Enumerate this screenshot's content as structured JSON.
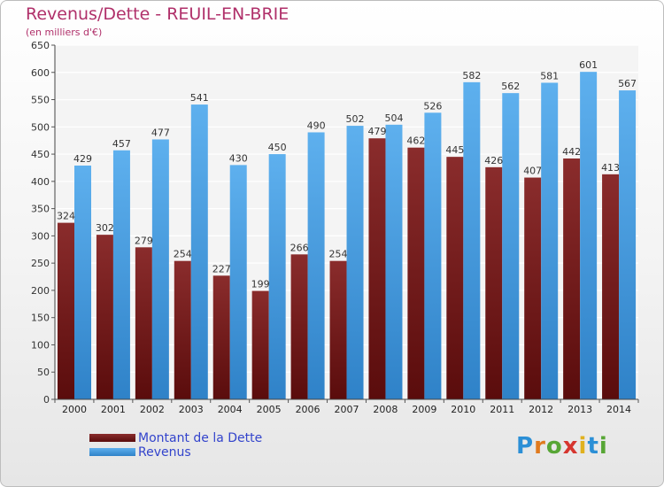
{
  "header": {
    "title": "Revenus/Dette - REUIL-EN-BRIE",
    "subtitle": "(en milliers d'€)"
  },
  "brand": {
    "text": "Proxiti"
  },
  "colors": {
    "dette": "#7a2020",
    "revenus": "#4a9fe0",
    "title": "#b0306a",
    "legend_text": "#3344cc"
  },
  "chart_data": {
    "type": "bar",
    "title": "Revenus/Dette - REUIL-EN-BRIE",
    "subtitle": "(en milliers d'€)",
    "xlabel": "",
    "ylabel": "",
    "ylim": [
      0,
      650
    ],
    "yticks": [
      0,
      50,
      100,
      150,
      200,
      250,
      300,
      350,
      400,
      450,
      500,
      550,
      600,
      650
    ],
    "grid": true,
    "legend_position": "bottom-left",
    "categories": [
      "2000",
      "2001",
      "2002",
      "2003",
      "2004",
      "2005",
      "2006",
      "2007",
      "2008",
      "2009",
      "2010",
      "2011",
      "2012",
      "2013",
      "2014"
    ],
    "series": [
      {
        "name": "Montant de la Dette",
        "values": [
          324,
          302,
          279,
          254,
          227,
          199,
          266,
          254,
          479,
          462,
          445,
          426,
          407,
          442,
          413
        ]
      },
      {
        "name": "Revenus",
        "values": [
          429,
          457,
          477,
          541,
          430,
          450,
          490,
          502,
          504,
          526,
          582,
          562,
          581,
          601,
          567
        ]
      }
    ]
  }
}
